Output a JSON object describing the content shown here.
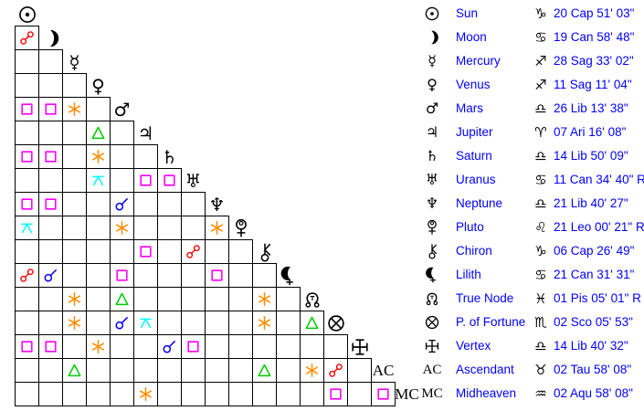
{
  "aspect_grid": {
    "planets": [
      {
        "name": "Sun",
        "symbol": "sun"
      },
      {
        "name": "Moon",
        "symbol": "moon"
      },
      {
        "name": "Mercury",
        "symbol": "mercury"
      },
      {
        "name": "Venus",
        "symbol": "venus"
      },
      {
        "name": "Mars",
        "symbol": "mars"
      },
      {
        "name": "Jupiter",
        "symbol": "jupiter"
      },
      {
        "name": "Saturn",
        "symbol": "saturn"
      },
      {
        "name": "Uranus",
        "symbol": "uranus"
      },
      {
        "name": "Neptune",
        "symbol": "neptune"
      },
      {
        "name": "Pluto",
        "symbol": "pluto"
      },
      {
        "name": "Chiron",
        "symbol": "chiron"
      },
      {
        "name": "Lilith",
        "symbol": "lilith"
      },
      {
        "name": "True Node",
        "symbol": "true-node"
      },
      {
        "name": "P. of Fortune",
        "symbol": "p-fortune"
      },
      {
        "name": "Vertex",
        "symbol": "vertex"
      },
      {
        "name": "Ascendant",
        "symbol": "AC",
        "label": "AC"
      },
      {
        "name": "Midheaven",
        "symbol": "MC",
        "label": "MC"
      }
    ],
    "aspects": [
      {
        "row": 2,
        "col": 1,
        "type": "opposition"
      },
      {
        "row": 5,
        "col": 1,
        "type": "square"
      },
      {
        "row": 5,
        "col": 2,
        "type": "square"
      },
      {
        "row": 5,
        "col": 3,
        "type": "sextile"
      },
      {
        "row": 6,
        "col": 4,
        "type": "trine"
      },
      {
        "row": 7,
        "col": 1,
        "type": "square"
      },
      {
        "row": 7,
        "col": 2,
        "type": "square"
      },
      {
        "row": 7,
        "col": 4,
        "type": "sextile"
      },
      {
        "row": 8,
        "col": 4,
        "type": "quincunx"
      },
      {
        "row": 8,
        "col": 6,
        "type": "square"
      },
      {
        "row": 8,
        "col": 7,
        "type": "square"
      },
      {
        "row": 9,
        "col": 1,
        "type": "square"
      },
      {
        "row": 9,
        "col": 2,
        "type": "square"
      },
      {
        "row": 9,
        "col": 5,
        "type": "conjunction"
      },
      {
        "row": 10,
        "col": 1,
        "type": "quincunx"
      },
      {
        "row": 10,
        "col": 5,
        "type": "sextile"
      },
      {
        "row": 10,
        "col": 9,
        "type": "sextile"
      },
      {
        "row": 11,
        "col": 6,
        "type": "square"
      },
      {
        "row": 11,
        "col": 8,
        "type": "opposition"
      },
      {
        "row": 12,
        "col": 1,
        "type": "opposition"
      },
      {
        "row": 12,
        "col": 2,
        "type": "conjunction"
      },
      {
        "row": 12,
        "col": 5,
        "type": "square"
      },
      {
        "row": 12,
        "col": 9,
        "type": "square"
      },
      {
        "row": 13,
        "col": 3,
        "type": "sextile"
      },
      {
        "row": 13,
        "col": 5,
        "type": "trine"
      },
      {
        "row": 13,
        "col": 11,
        "type": "sextile"
      },
      {
        "row": 14,
        "col": 3,
        "type": "sextile"
      },
      {
        "row": 14,
        "col": 5,
        "type": "conjunction"
      },
      {
        "row": 14,
        "col": 6,
        "type": "quincunx"
      },
      {
        "row": 14,
        "col": 11,
        "type": "sextile"
      },
      {
        "row": 14,
        "col": 13,
        "type": "trine"
      },
      {
        "row": 15,
        "col": 1,
        "type": "square"
      },
      {
        "row": 15,
        "col": 2,
        "type": "square"
      },
      {
        "row": 15,
        "col": 4,
        "type": "sextile"
      },
      {
        "row": 15,
        "col": 7,
        "type": "conjunction"
      },
      {
        "row": 15,
        "col": 8,
        "type": "square"
      },
      {
        "row": 16,
        "col": 3,
        "type": "trine"
      },
      {
        "row": 16,
        "col": 11,
        "type": "trine"
      },
      {
        "row": 16,
        "col": 13,
        "type": "sextile"
      },
      {
        "row": 16,
        "col": 14,
        "type": "opposition"
      },
      {
        "row": 17,
        "col": 6,
        "type": "sextile"
      },
      {
        "row": 17,
        "col": 14,
        "type": "square"
      },
      {
        "row": 17,
        "col": 16,
        "type": "square"
      }
    ],
    "aspect_colors": {
      "conjunction": "#0000ff",
      "opposition": "#ff0000",
      "square": "#ff00ff",
      "trine": "#00cc00",
      "sextile": "#ff8c00",
      "quincunx": "#00ffff"
    },
    "grid_line_color": "#000000"
  },
  "positions_table": {
    "text_color": "#0000ff",
    "rows": [
      {
        "name": "Sun",
        "symbol": "sun",
        "sign": "capricorn",
        "position": "20 Cap 51' 03\""
      },
      {
        "name": "Moon",
        "symbol": "moon",
        "sign": "cancer",
        "position": "19 Can 58' 48\""
      },
      {
        "name": "Mercury",
        "symbol": "mercury",
        "sign": "sagittarius",
        "position": "28 Sag 33' 02\""
      },
      {
        "name": "Venus",
        "symbol": "venus",
        "sign": "sagittarius",
        "position": "11 Sag 11' 04\""
      },
      {
        "name": "Mars",
        "symbol": "mars",
        "sign": "libra",
        "position": "26 Lib 13' 38\""
      },
      {
        "name": "Jupiter",
        "symbol": "jupiter",
        "sign": "aries",
        "position": "07 Ari 16' 08\""
      },
      {
        "name": "Saturn",
        "symbol": "saturn",
        "sign": "libra",
        "position": "14 Lib 50' 09\""
      },
      {
        "name": "Uranus",
        "symbol": "uranus",
        "sign": "cancer",
        "position": "11 Can 34' 40\" R"
      },
      {
        "name": "Neptune",
        "symbol": "neptune",
        "sign": "libra",
        "position": "21 Lib 40' 27\""
      },
      {
        "name": "Pluto",
        "symbol": "pluto",
        "sign": "leo",
        "position": "21 Leo 00' 21\" R"
      },
      {
        "name": "Chiron",
        "symbol": "chiron",
        "sign": "capricorn",
        "position": "06 Cap 26' 49\""
      },
      {
        "name": "Lilith",
        "symbol": "lilith",
        "sign": "cancer",
        "position": "21 Can 31' 31\""
      },
      {
        "name": "True Node",
        "symbol": "true-node",
        "sign": "pisces",
        "position": "01 Pis 05' 01\" R"
      },
      {
        "name": "P. of Fortune",
        "symbol": "p-fortune",
        "sign": "scorpio",
        "position": "02 Sco 05' 53\""
      },
      {
        "name": "Vertex",
        "symbol": "vertex",
        "sign": "libra",
        "position": "14 Lib 40' 32\""
      },
      {
        "name": "Ascendant",
        "symbol": "AC",
        "sign": "taurus",
        "position": "02 Tau 58' 08\""
      },
      {
        "name": "Midheaven",
        "symbol": "MC",
        "sign": "aquarius",
        "position": "02 Aqu 58' 08\""
      }
    ]
  }
}
